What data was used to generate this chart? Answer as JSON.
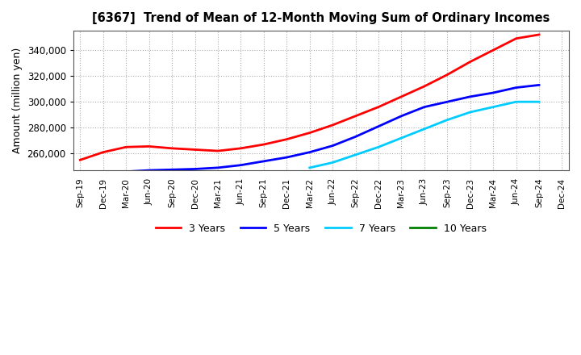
{
  "title": "[6367]  Trend of Mean of 12-Month Moving Sum of Ordinary Incomes",
  "ylabel": "Amount (million yen)",
  "background_color": "#ffffff",
  "plot_bg_color": "#ffffff",
  "grid_color": "#aaaaaa",
  "ylim": [
    247000,
    355000
  ],
  "yticks": [
    260000,
    280000,
    300000,
    320000,
    340000
  ],
  "x_labels": [
    "Sep-19",
    "Dec-19",
    "Mar-20",
    "Jun-20",
    "Sep-20",
    "Dec-20",
    "Mar-21",
    "Jun-21",
    "Sep-21",
    "Dec-21",
    "Mar-22",
    "Jun-22",
    "Sep-22",
    "Dec-22",
    "Mar-23",
    "Jun-23",
    "Sep-23",
    "Dec-23",
    "Mar-24",
    "Jun-24",
    "Sep-24",
    "Dec-24"
  ],
  "series": {
    "3 Years": {
      "color": "#ff0000",
      "data_x": [
        0,
        1,
        2,
        3,
        4,
        5,
        6,
        7,
        8,
        9,
        10,
        11,
        12,
        13,
        14,
        15,
        16,
        17,
        18,
        19,
        20
      ],
      "data_y": [
        255000,
        261000,
        265000,
        265500,
        264000,
        263000,
        262000,
        264000,
        267000,
        271000,
        276000,
        282000,
        289000,
        296000,
        304000,
        312000,
        321000,
        331000,
        340000,
        349000,
        352000
      ]
    },
    "5 Years": {
      "color": "#0000ff",
      "data_x": [
        1,
        2,
        3,
        4,
        5,
        6,
        7,
        8,
        9,
        10,
        11,
        12,
        13,
        14,
        15,
        16,
        17,
        18,
        19,
        20
      ],
      "data_y": [
        244000,
        246000,
        247000,
        247500,
        248000,
        249000,
        251000,
        254000,
        257000,
        261000,
        266000,
        273000,
        281000,
        289000,
        296000,
        300000,
        304000,
        307000,
        311000,
        313000
      ]
    },
    "7 Years": {
      "color": "#00ccff",
      "data_x": [
        10,
        11,
        12,
        13,
        14,
        15,
        16,
        17,
        18,
        19,
        20
      ],
      "data_y": [
        249000,
        253000,
        259000,
        265000,
        272000,
        279000,
        286000,
        292000,
        296000,
        300000,
        300000
      ]
    },
    "10 Years": {
      "color": "#008000",
      "data_x": [],
      "data_y": []
    }
  },
  "legend_labels": [
    "3 Years",
    "5 Years",
    "7 Years",
    "10 Years"
  ],
  "legend_colors": [
    "#ff0000",
    "#0000ff",
    "#00ccff",
    "#008000"
  ]
}
